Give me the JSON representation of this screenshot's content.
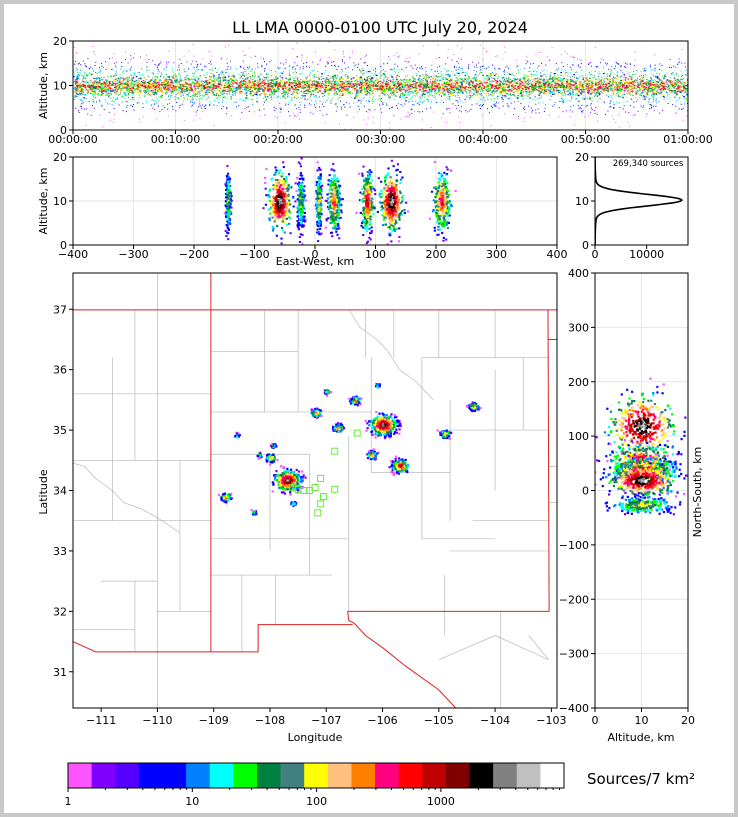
{
  "title": "LL LMA 0000-0100 UTC July 20, 2024",
  "chart_data": [
    {
      "type": "scatter",
      "panel": "time-altitude",
      "ylabel": "Altitude, km",
      "ylim": [
        0,
        20
      ],
      "yticks": [
        "0",
        "10",
        "20"
      ],
      "xticks": [
        "00:00:00",
        "00:10:00",
        "00:20:00",
        "00:30:00",
        "00:40:00",
        "00:50:00",
        "01:00:00"
      ],
      "description_values": {
        "core_altitude_km": 10
      }
    },
    {
      "type": "heatmap",
      "panel": "east-west-altitude",
      "xlabel": "East-West, km",
      "ylabel": "Altitude, km",
      "xlim": [
        -400,
        400
      ],
      "ylim": [
        0,
        20
      ],
      "xticks": [
        "−400",
        "−300",
        "−200",
        "−100",
        "0",
        "100",
        "200",
        "300",
        "400"
      ],
      "yticks": [
        "0",
        "10",
        "20"
      ],
      "clusters_x_km": [
        -145,
        -60,
        -25,
        5,
        30,
        85,
        125,
        208
      ]
    },
    {
      "type": "line",
      "panel": "altitude-histogram",
      "annotation": "269,340 sources",
      "xlim": [
        0,
        18000
      ],
      "ylim": [
        0,
        20
      ],
      "xticks": [
        "0",
        "10000"
      ],
      "yticks": [
        "0",
        "10",
        "20"
      ],
      "peak_altitude_km": 10.2,
      "peak_count": 16500
    },
    {
      "type": "heatmap",
      "panel": "plan-view",
      "xlabel": "Longitude",
      "ylabel": "Latitude",
      "xlim": [
        -111.5,
        -102.9
      ],
      "ylim": [
        30.4,
        37.6
      ],
      "xticks": [
        "−111",
        "−110",
        "−109",
        "−108",
        "−107",
        "−106",
        "−105",
        "−104",
        "−103"
      ],
      "yticks": [
        "31",
        "32",
        "33",
        "34",
        "35",
        "36",
        "37"
      ],
      "storm_cells": [
        {
          "lon": -107.7,
          "lat": 34.18,
          "size": "large"
        },
        {
          "lon": -106.0,
          "lat": 35.1,
          "size": "large"
        },
        {
          "lon": -105.7,
          "lat": 34.42,
          "size": "medium"
        },
        {
          "lon": -106.8,
          "lat": 35.05,
          "size": "small"
        },
        {
          "lon": -106.2,
          "lat": 34.6,
          "size": "small"
        },
        {
          "lon": -104.9,
          "lat": 34.95,
          "size": "small"
        },
        {
          "lon": -104.4,
          "lat": 35.4,
          "size": "small"
        },
        {
          "lon": -108.0,
          "lat": 34.55,
          "size": "small"
        },
        {
          "lon": -108.8,
          "lat": 33.9,
          "size": "small"
        },
        {
          "lon": -107.2,
          "lat": 35.3,
          "size": "small"
        },
        {
          "lon": -106.5,
          "lat": 35.5,
          "size": "small"
        },
        {
          "lon": -107.0,
          "lat": 35.65,
          "size": "tiny"
        },
        {
          "lon": -106.1,
          "lat": 35.75,
          "size": "tiny"
        },
        {
          "lon": -108.6,
          "lat": 34.92,
          "size": "tiny"
        },
        {
          "lon": -107.6,
          "lat": 33.8,
          "size": "tiny"
        },
        {
          "lon": -108.3,
          "lat": 33.65,
          "size": "tiny"
        },
        {
          "lon": -107.95,
          "lat": 34.75,
          "size": "tiny"
        },
        {
          "lon": -108.2,
          "lat": 34.6,
          "size": "tiny"
        }
      ],
      "stations": [
        {
          "lon": -107.6,
          "lat": 34.05
        },
        {
          "lon": -107.4,
          "lat": 34.0
        },
        {
          "lon": -107.3,
          "lat": 34.0
        },
        {
          "lon": -107.2,
          "lat": 34.05
        },
        {
          "lon": -107.1,
          "lat": 34.2
        },
        {
          "lon": -107.05,
          "lat": 33.9
        },
        {
          "lon": -107.1,
          "lat": 33.78
        },
        {
          "lon": -107.15,
          "lat": 33.63
        },
        {
          "lon": -106.85,
          "lat": 34.02
        },
        {
          "lon": -106.85,
          "lat": 34.65
        },
        {
          "lon": -106.45,
          "lat": 34.95
        },
        {
          "lon": -107.5,
          "lat": 34.02
        }
      ]
    },
    {
      "type": "heatmap",
      "panel": "altitude-north-south",
      "xlabel": "Altitude, km",
      "ylabel": "North-South, km",
      "xlim": [
        0,
        20
      ],
      "ylim": [
        -400,
        400
      ],
      "xticks": [
        "0",
        "10",
        "20"
      ],
      "yticks": [
        "−400",
        "−300",
        "−200",
        "−100",
        "0",
        "100",
        "200",
        "300",
        "400"
      ],
      "clusters_ns_km": [
        120,
        60,
        40,
        20,
        -25
      ]
    }
  ],
  "colorbar": {
    "label": "Sources/7 km²",
    "ticks": [
      "1",
      "10",
      "100",
      "1000"
    ],
    "colors": [
      "#ff55ff",
      "#8000ff",
      "#5500ff",
      "#0000ff",
      "#0000ff",
      "#0080ff",
      "#00ffff",
      "#00ff00",
      "#008040",
      "#408080",
      "#ffff00",
      "#ffc080",
      "#ff8000",
      "#ff0080",
      "#ff0000",
      "#c00000",
      "#800000",
      "#000000",
      "#808080",
      "#c0c0c0",
      "#ffffff"
    ]
  }
}
